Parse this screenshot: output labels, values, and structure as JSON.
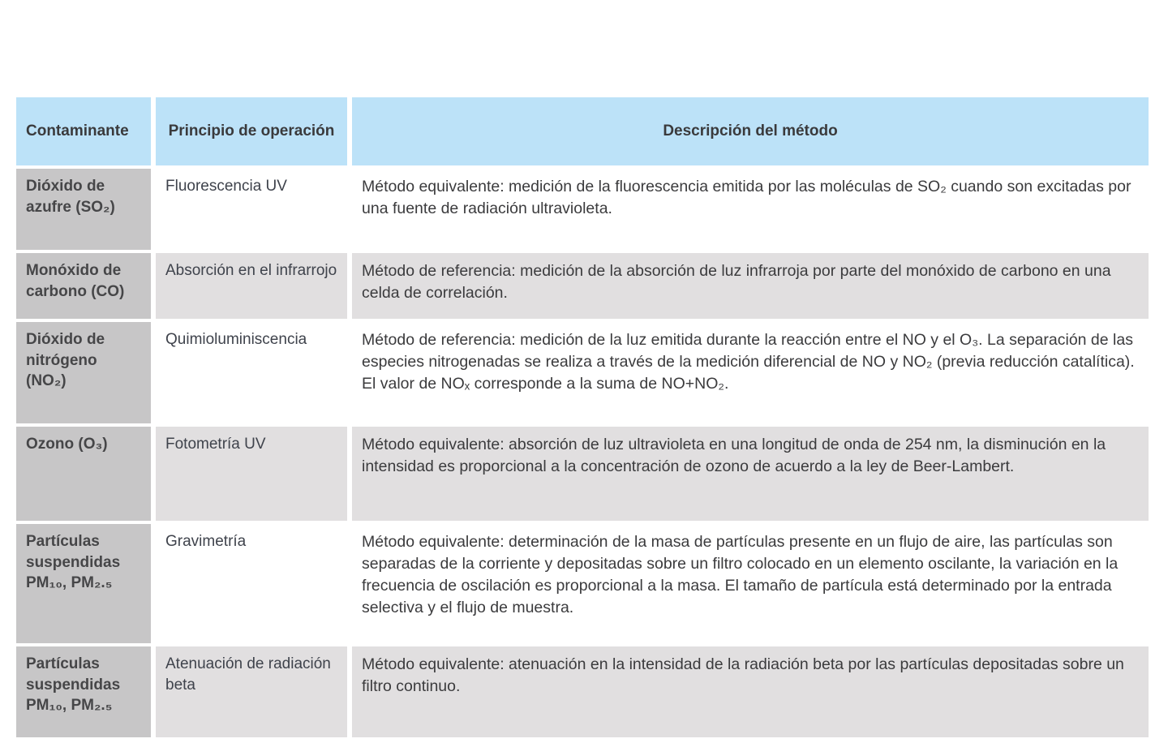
{
  "colors": {
    "header_bg": "#bce2f8",
    "contaminant_column_bg": "#c7c6c7",
    "stripe_row_bg": "#e1dfe0",
    "plain_row_bg": "#ffffff",
    "text": "#3d3d3f"
  },
  "table": {
    "headers": [
      "Contaminante",
      "Principio de operación",
      "Descripción del método"
    ],
    "rows": [
      {
        "contaminante": "Dióxido de azufre (SO₂)",
        "principio": "Fluorescencia UV",
        "descripcion": "Método equivalente: medición de la fluorescencia emitida por las moléculas de SO₂ cuando son excitadas por una fuente de radiación ultravioleta."
      },
      {
        "contaminante": "Monóxido de carbono (CO)",
        "principio": "Absorción en el infrarrojo",
        "descripcion": "Método de referencia: medición de la absorción de luz infrarroja por parte del monóxido de carbono en una celda de correlación."
      },
      {
        "contaminante": "Dióxido de nitrógeno (NO₂)",
        "principio": "Quimioluminiscencia",
        "descripcion": "Método de referencia: medición de la luz emitida durante la reacción entre el NO y el O₃. La separación de las especies nitrogenadas se realiza a través de la medición diferencial de NO y NO₂ (previa reducción catalítica). El valor de NOₓ corresponde a la suma de NO+NO₂."
      },
      {
        "contaminante": "Ozono (O₃)",
        "principio": "Fotometría UV",
        "descripcion": "Método equivalente: absorción de luz ultravioleta en una longitud de onda de 254 nm, la disminución en la intensidad es proporcional a la concentración de ozono de acuerdo a la ley de Beer-Lambert."
      },
      {
        "contaminante": "Partículas suspendidas PM₁₀, PM₂.₅",
        "principio": "Gravimetría",
        "descripcion": "Método equivalente: determinación de la masa de partículas presente en un flujo de aire, las partículas son separadas de la corriente y depositadas sobre un filtro colocado en un elemento oscilante, la variación en la frecuencia de oscilación es proporcional a la masa. El tamaño de partícula está determinado por la entrada selectiva y el flujo de muestra."
      },
      {
        "contaminante": "Partículas suspendidas PM₁₀, PM₂.₅",
        "principio": "Atenuación de radiación beta",
        "descripcion": "Método equivalente: atenuación en la intensidad de la radiación beta por las partículas depositadas sobre un filtro continuo."
      }
    ]
  }
}
